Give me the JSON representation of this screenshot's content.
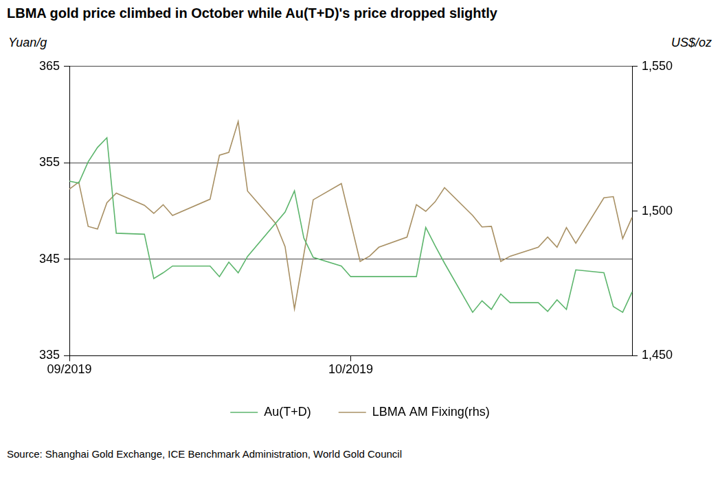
{
  "chart_data": {
    "type": "line",
    "title": "LBMA gold price climbed in October while Au(T+D)'s price dropped slightly",
    "ylabel": "Yuan/g",
    "y2label": "US$/oz",
    "source": "Source: Shanghai Gold Exchange, ICE Benchmark Administration, World Gold Council",
    "categories": [
      "09/2019",
      null,
      null,
      null,
      null,
      null,
      null,
      null,
      null,
      null,
      null,
      null,
      null,
      null,
      null,
      null,
      null,
      null,
      null,
      null,
      null,
      null,
      null,
      null,
      null,
      null,
      null,
      null,
      null,
      null,
      "10/2019",
      null,
      null,
      null,
      null,
      null,
      null,
      null,
      null,
      null,
      null,
      null,
      null,
      null,
      null,
      null,
      null,
      null,
      null,
      null,
      null,
      null,
      null,
      null,
      null,
      null,
      null,
      null,
      null,
      null,
      null
    ],
    "series": [
      {
        "name": "Au(T+D)",
        "color": "#5cb56c",
        "values": [
          353.1,
          352.9,
          355.1,
          356.6,
          357.6,
          347.7,
          null,
          null,
          347.6,
          343.0,
          343.6,
          344.3,
          null,
          null,
          null,
          344.3,
          343.2,
          344.7,
          343.6,
          345.3,
          null,
          null,
          null,
          349.9,
          352.1,
          347.2,
          345.2,
          null,
          null,
          344.3,
          343.2,
          null,
          null,
          null,
          null,
          null,
          null,
          343.2,
          348.3,
          346.4,
          344.6,
          null,
          null,
          339.5,
          340.7,
          339.8,
          341.4,
          340.5,
          null,
          null,
          340.5,
          339.6,
          340.8,
          339.8,
          343.9,
          null,
          null,
          343.6,
          340.1,
          339.5,
          341.6
        ]
      },
      {
        "name": "LBMA AM Fixing(rhs)",
        "color": "#a89064",
        "axis": "y2",
        "values": [
          1507.6,
          1510.0,
          1494.7,
          1493.8,
          1502.9,
          1506.2,
          null,
          null,
          1502.0,
          1499.2,
          1502.2,
          1498.5,
          null,
          null,
          null,
          1504.1,
          1519.3,
          1520.3,
          1531.0,
          1506.9,
          null,
          null,
          1495.7,
          1487.7,
          1466.2,
          null,
          1503.9,
          null,
          null,
          1509.5,
          null,
          1482.6,
          1484.4,
          1487.5,
          null,
          null,
          1491.0,
          1502.2,
          1499.9,
          1503.2,
          1508.1,
          null,
          null,
          1498.5,
          1494.5,
          1494.7,
          1482.6,
          1484.4,
          null,
          null,
          1487.5,
          1491.0,
          1487.5,
          1494.3,
          1488.9,
          null,
          null,
          1504.6,
          1505.0,
          1490.5,
          1497.8
        ]
      }
    ],
    "ylim": [
      335,
      365
    ],
    "yticks": [
      335,
      345,
      355,
      365
    ],
    "y2lim": [
      1450,
      1550
    ],
    "y2ticks": [
      {
        "value": 1450,
        "label": "1,450"
      },
      {
        "value": 1500,
        "label": "1,500"
      },
      {
        "value": 1550,
        "label": "1,550"
      }
    ],
    "grid": true,
    "legend": "bottom"
  }
}
